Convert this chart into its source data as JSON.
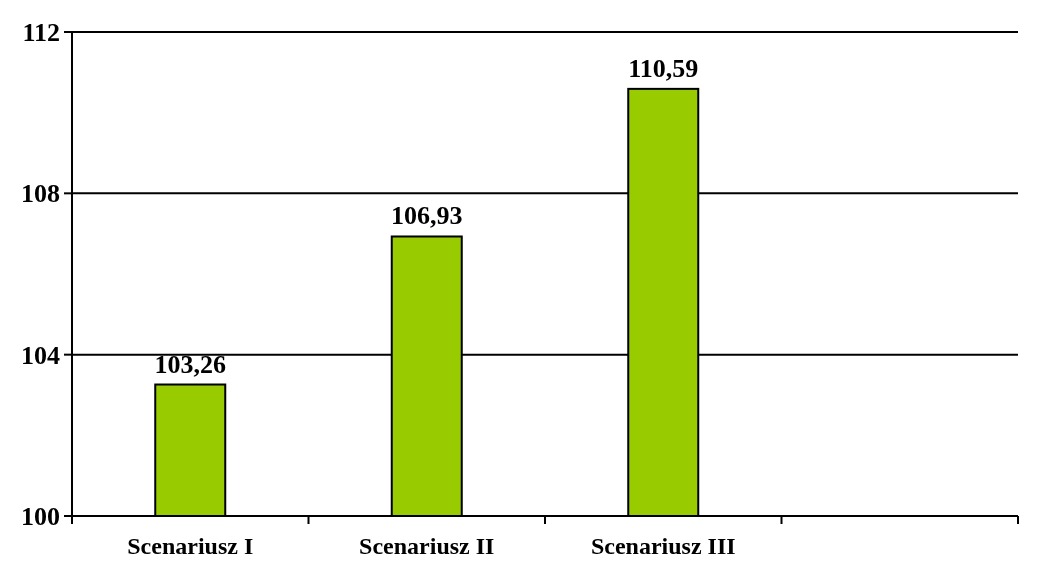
{
  "chart_data": {
    "type": "bar",
    "categories": [
      "Scenariusz I",
      "Scenariusz II",
      "Scenariusz III",
      null
    ],
    "values": [
      103.26,
      106.93,
      110.59,
      null
    ],
    "value_labels": [
      "103,26",
      "106,93",
      "110,59",
      null
    ],
    "color": "#99cc00",
    "ylim": [
      100,
      112
    ],
    "yticks": [
      100,
      104,
      108,
      112
    ],
    "grid": "y"
  }
}
